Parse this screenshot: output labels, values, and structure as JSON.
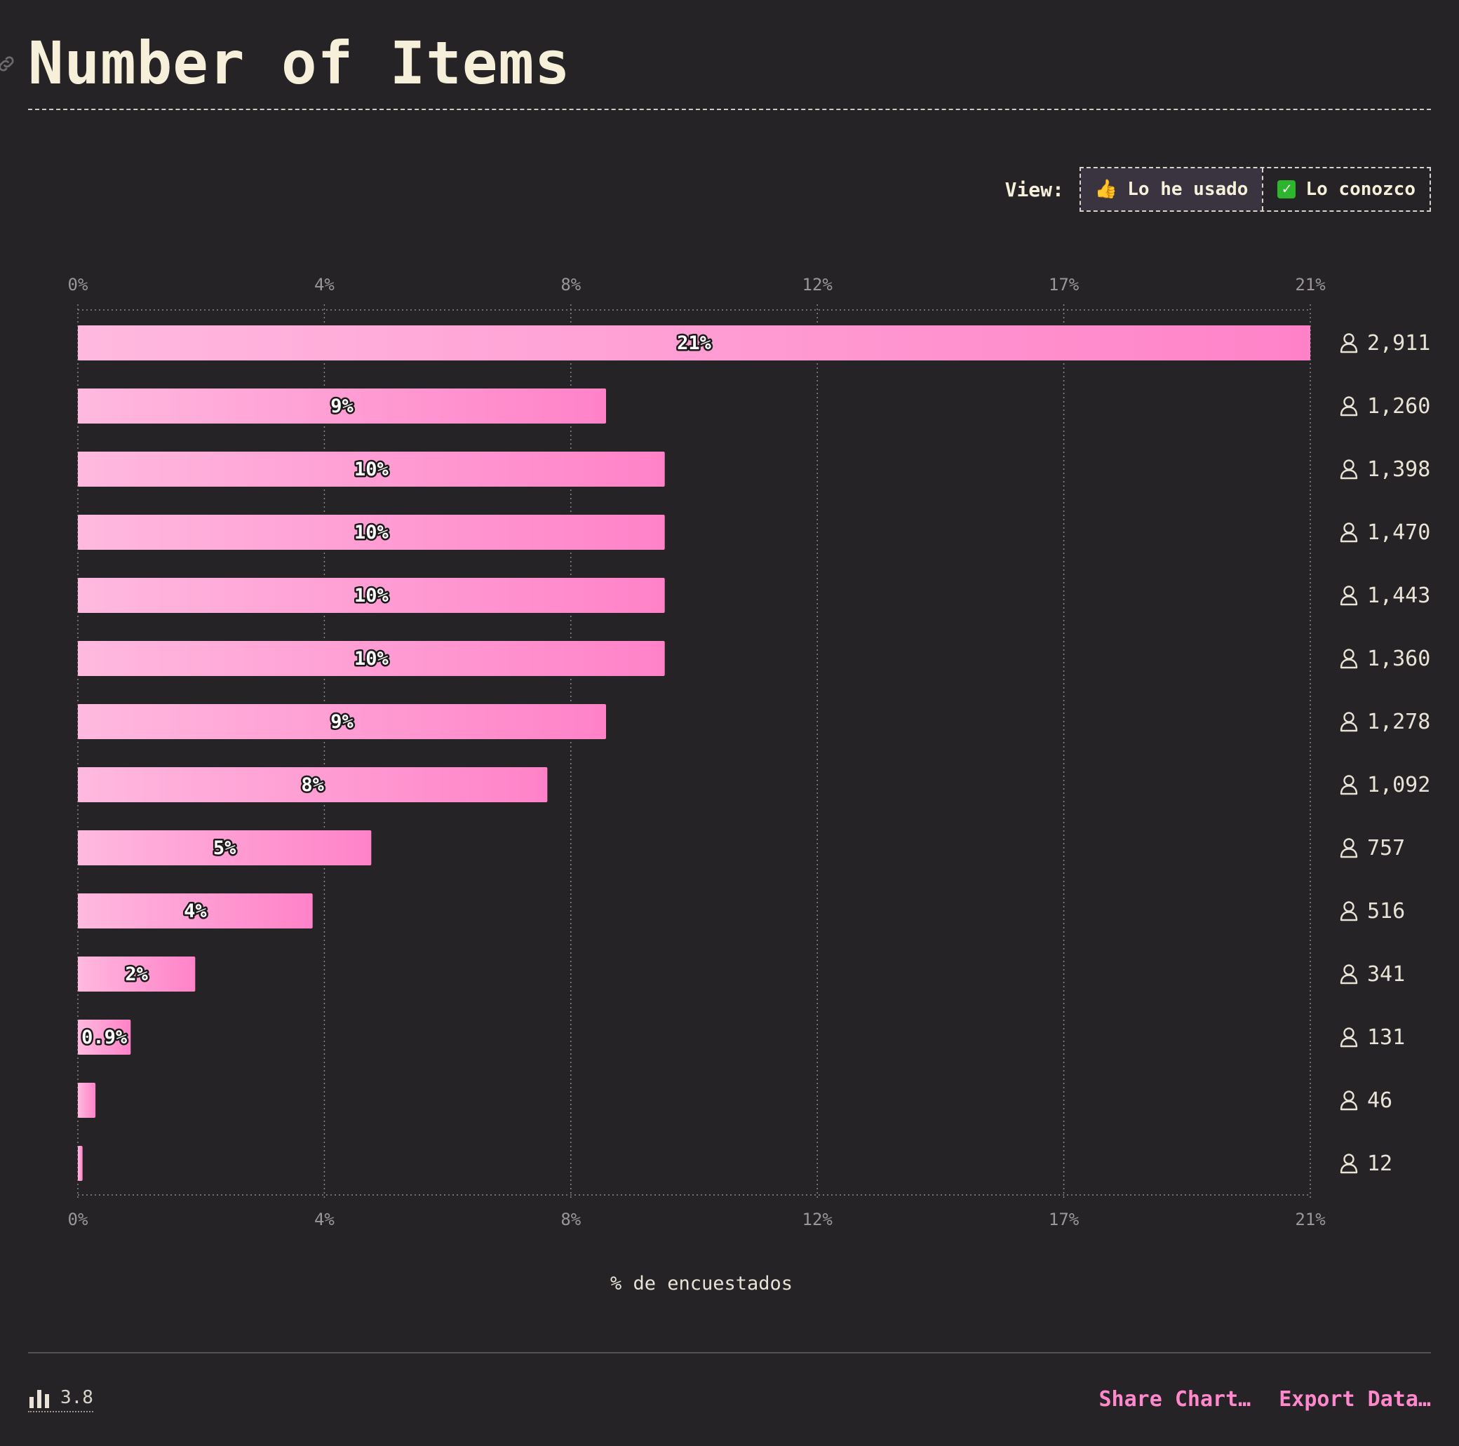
{
  "header": {
    "title": "Number of Items"
  },
  "view": {
    "label": "View:",
    "options": [
      {
        "icon": "thumbs-up-icon",
        "label": "Lo he usado",
        "active": true
      },
      {
        "icon": "check-box-icon",
        "label": "Lo conozco",
        "active": false
      }
    ]
  },
  "chart_data": {
    "type": "bar",
    "orientation": "horizontal",
    "title": "Number of Items",
    "xlabel": "% de encuestados",
    "xlim": [
      0,
      21
    ],
    "ticks": [
      "0%",
      "4%",
      "8%",
      "12%",
      "17%",
      "21%"
    ],
    "grid": true,
    "series": [
      {
        "values": [
          21,
          9,
          10,
          10,
          10,
          10,
          9,
          8,
          5,
          4,
          2,
          0.9,
          0.3,
          0.08
        ],
        "labels": [
          "21%",
          "9%",
          "10%",
          "10%",
          "10%",
          "10%",
          "9%",
          "8%",
          "5%",
          "4%",
          "2%",
          "0.9%",
          "",
          ""
        ],
        "counts": [
          "2,911",
          "1,260",
          "1,398",
          "1,470",
          "1,443",
          "1,360",
          "1,278",
          "1,092",
          "757",
          "516",
          "341",
          "131",
          "46",
          "12"
        ]
      }
    ],
    "colors": {
      "bar_start": "#ffb9df",
      "bar_end": "#ff82c8",
      "grid": "#8a878a",
      "tick": "#9a969a"
    }
  },
  "footer": {
    "version": "3.8",
    "share_label": "Share Chart…",
    "export_label": "Export Data…"
  }
}
